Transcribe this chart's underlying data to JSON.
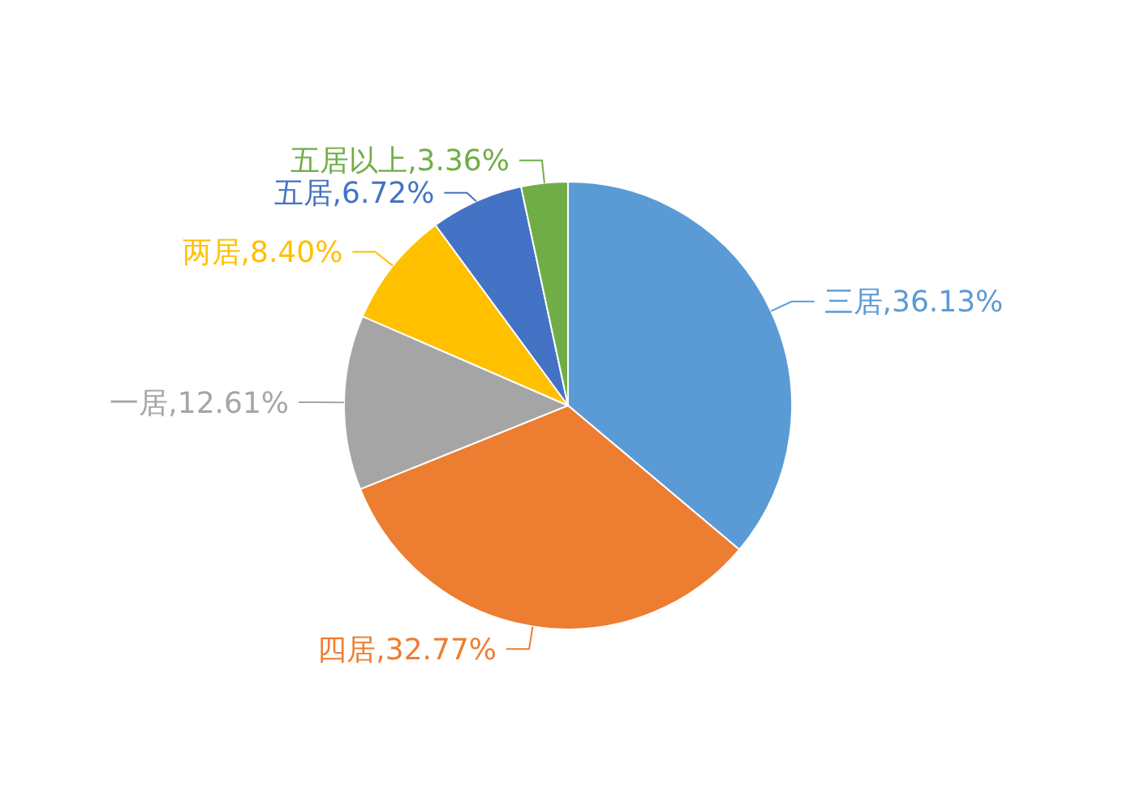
{
  "chart_data": {
    "type": "pie",
    "categories": [
      "三居",
      "四居",
      "一居",
      "两居",
      "五居",
      "五居以上"
    ],
    "values": [
      36.13,
      32.77,
      12.61,
      8.4,
      6.72,
      3.36
    ],
    "colors": [
      "#5b9bd5",
      "#ed7d31",
      "#a5a5a5",
      "#ffc000",
      "#4472c4",
      "#70ad47"
    ],
    "value_labels": [
      "36.13%",
      "32.77%",
      "12.61%",
      "8.40%",
      "6.72%",
      "3.36%"
    ]
  }
}
